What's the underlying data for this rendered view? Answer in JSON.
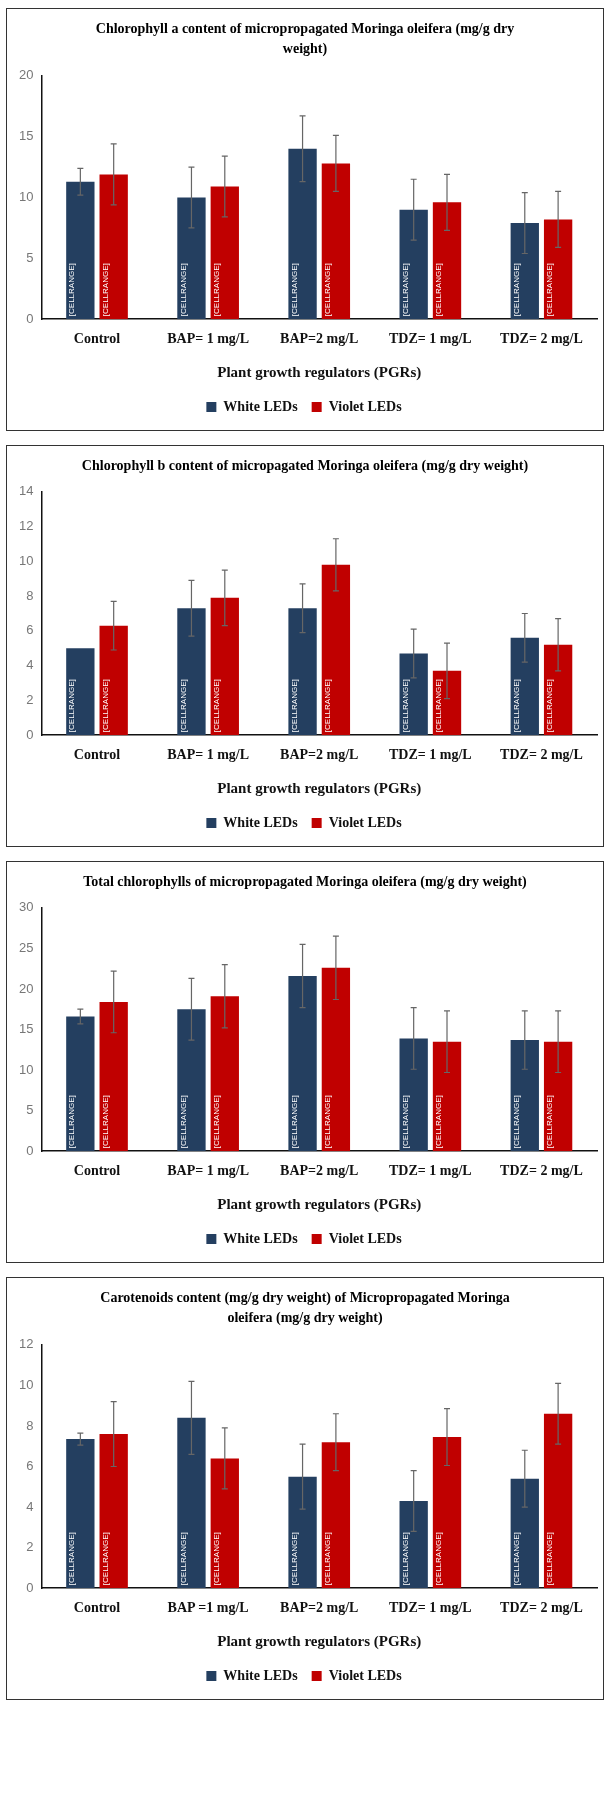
{
  "chart_data": [
    {
      "type": "bar",
      "title": "Chlorophyll  a content of micropropagated  Moringa oleifera (mg/g dry weight)",
      "xlabel": "Plant growth regulators (PGRs)",
      "categories": [
        "Control",
        "BAP= 1 mg/L",
        "BAP=2 mg/L",
        "TDZ= 1 mg/L",
        "TDZ= 2 mg/L"
      ],
      "ylim": [
        0,
        20
      ],
      "yticks": [
        0,
        5,
        10,
        15,
        20
      ],
      "legend": "bottom",
      "series": [
        {
          "name": "White LEDs",
          "color": "#243f60",
          "values": [
            11.3,
            10.0,
            14.0,
            9.0,
            7.9
          ],
          "errors": [
            1.1,
            2.5,
            2.7,
            2.5,
            2.5
          ],
          "value_labels": [
            "[CELLRANGE]",
            "[CELLRANGE]",
            "[CELLRANGE]",
            "[CELLRANGE]",
            "[CELLRANGE]"
          ]
        },
        {
          "name": "Violet LEDs",
          "color": "#c00000",
          "values": [
            11.9,
            10.9,
            12.8,
            9.6,
            8.2
          ],
          "errors": [
            2.5,
            2.5,
            2.3,
            2.3,
            2.3
          ],
          "value_labels": [
            "[CELLRANGE]",
            "[CELLRANGE]",
            "[CELLRANGE]",
            "[CELLRANGE]",
            "[CELLRANGE]"
          ]
        }
      ]
    },
    {
      "type": "bar",
      "title": "Chlorophyll  b content of micropagated  Moringa oleifera (mg/g dry weight)",
      "xlabel": "Plant growth regulators (PGRs)",
      "categories": [
        "Control",
        "BAP= 1 mg/L",
        "BAP=2 mg/L",
        "TDZ= 1 mg/L",
        "TDZ= 2 mg/L"
      ],
      "ylim": [
        0,
        14
      ],
      "yticks": [
        0,
        2,
        4,
        6,
        8,
        10,
        12,
        14
      ],
      "legend": "bottom",
      "series": [
        {
          "name": "White LEDs",
          "color": "#243f60",
          "values": [
            5.0,
            7.3,
            7.3,
            4.7,
            5.6
          ],
          "errors": [
            null,
            1.6,
            1.4,
            1.4,
            1.4
          ],
          "value_labels": [
            "[CELLRANGE]",
            "[CELLRANGE]",
            "[CELLRANGE]",
            "[CELLRANGE]",
            "[CELLRANGE]"
          ]
        },
        {
          "name": "Violet LEDs",
          "color": "#c00000",
          "values": [
            6.3,
            7.9,
            9.8,
            3.7,
            5.2
          ],
          "errors": [
            1.4,
            1.6,
            1.5,
            1.6,
            1.5
          ],
          "value_labels": [
            "[CELLRANGE]",
            "[CELLRANGE]",
            "[CELLRANGE]",
            "[CELLRANGE]",
            "[CELLRANGE]"
          ]
        }
      ]
    },
    {
      "type": "bar",
      "title": "Total  chlorophylls of micropropagated  Moringa oleifera (mg/g dry weight)",
      "xlabel": "Plant growth regulators (PGRs)",
      "categories": [
        "Control",
        "BAP= 1 mg/L",
        "BAP=2 mg/L",
        "TDZ= 1 mg/L",
        "TDZ= 2 mg/L"
      ],
      "ylim": [
        0,
        30
      ],
      "yticks": [
        0,
        5,
        10,
        15,
        20,
        25,
        30
      ],
      "legend": "bottom",
      "series": [
        {
          "name": "White LEDs",
          "color": "#243f60",
          "values": [
            16.6,
            17.5,
            21.6,
            13.9,
            13.7
          ],
          "errors": [
            0.9,
            3.8,
            3.9,
            3.8,
            3.6
          ],
          "value_labels": [
            "[CELLRANGE]",
            "[CELLRANGE]",
            "[CELLRANGE]",
            "[CELLRANGE]",
            "[CELLRANGE]"
          ]
        },
        {
          "name": "Violet LEDs",
          "color": "#c00000",
          "values": [
            18.4,
            19.1,
            22.6,
            13.5,
            13.5
          ],
          "errors": [
            3.8,
            3.9,
            3.9,
            3.8,
            3.8
          ],
          "value_labels": [
            "[CELLRANGE]",
            "[CELLRANGE]",
            "[CELLRANGE]",
            "[CELLRANGE]",
            "[CELLRANGE]"
          ]
        }
      ]
    },
    {
      "type": "bar",
      "title": "Carotenoids  content (mg/g dry weight) of Micropropagated  Moringa oleifera (mg/g dry weight)",
      "xlabel": "Plant growth regulators (PGRs)",
      "categories": [
        "Control",
        "BAP =1 mg/L",
        "BAP=2 mg/L",
        "TDZ= 1 mg/L",
        "TDZ= 2 mg/L"
      ],
      "ylim": [
        0,
        12
      ],
      "yticks": [
        0,
        2,
        4,
        6,
        8,
        10,
        12
      ],
      "legend": "bottom",
      "series": [
        {
          "name": "White LEDs",
          "color": "#243f60",
          "values": [
            7.35,
            8.4,
            5.5,
            4.3,
            5.4
          ],
          "errors": [
            0.3,
            1.8,
            1.6,
            1.5,
            1.4
          ],
          "value_labels": [
            "[CELLRANGE]",
            "[CELLRANGE]",
            "[CELLRANGE]",
            "[CELLRANGE]",
            "[CELLRANGE]"
          ]
        },
        {
          "name": "Violet LEDs",
          "color": "#c00000",
          "values": [
            7.6,
            6.4,
            7.2,
            7.45,
            8.6
          ],
          "errors": [
            1.6,
            1.5,
            1.4,
            1.4,
            1.5
          ],
          "value_labels": [
            "[CELLRANGE]",
            "[CELLRANGE]",
            "[CELLRANGE]",
            "[CELLRANGE]",
            "[CELLRANGE]"
          ]
        }
      ]
    }
  ]
}
